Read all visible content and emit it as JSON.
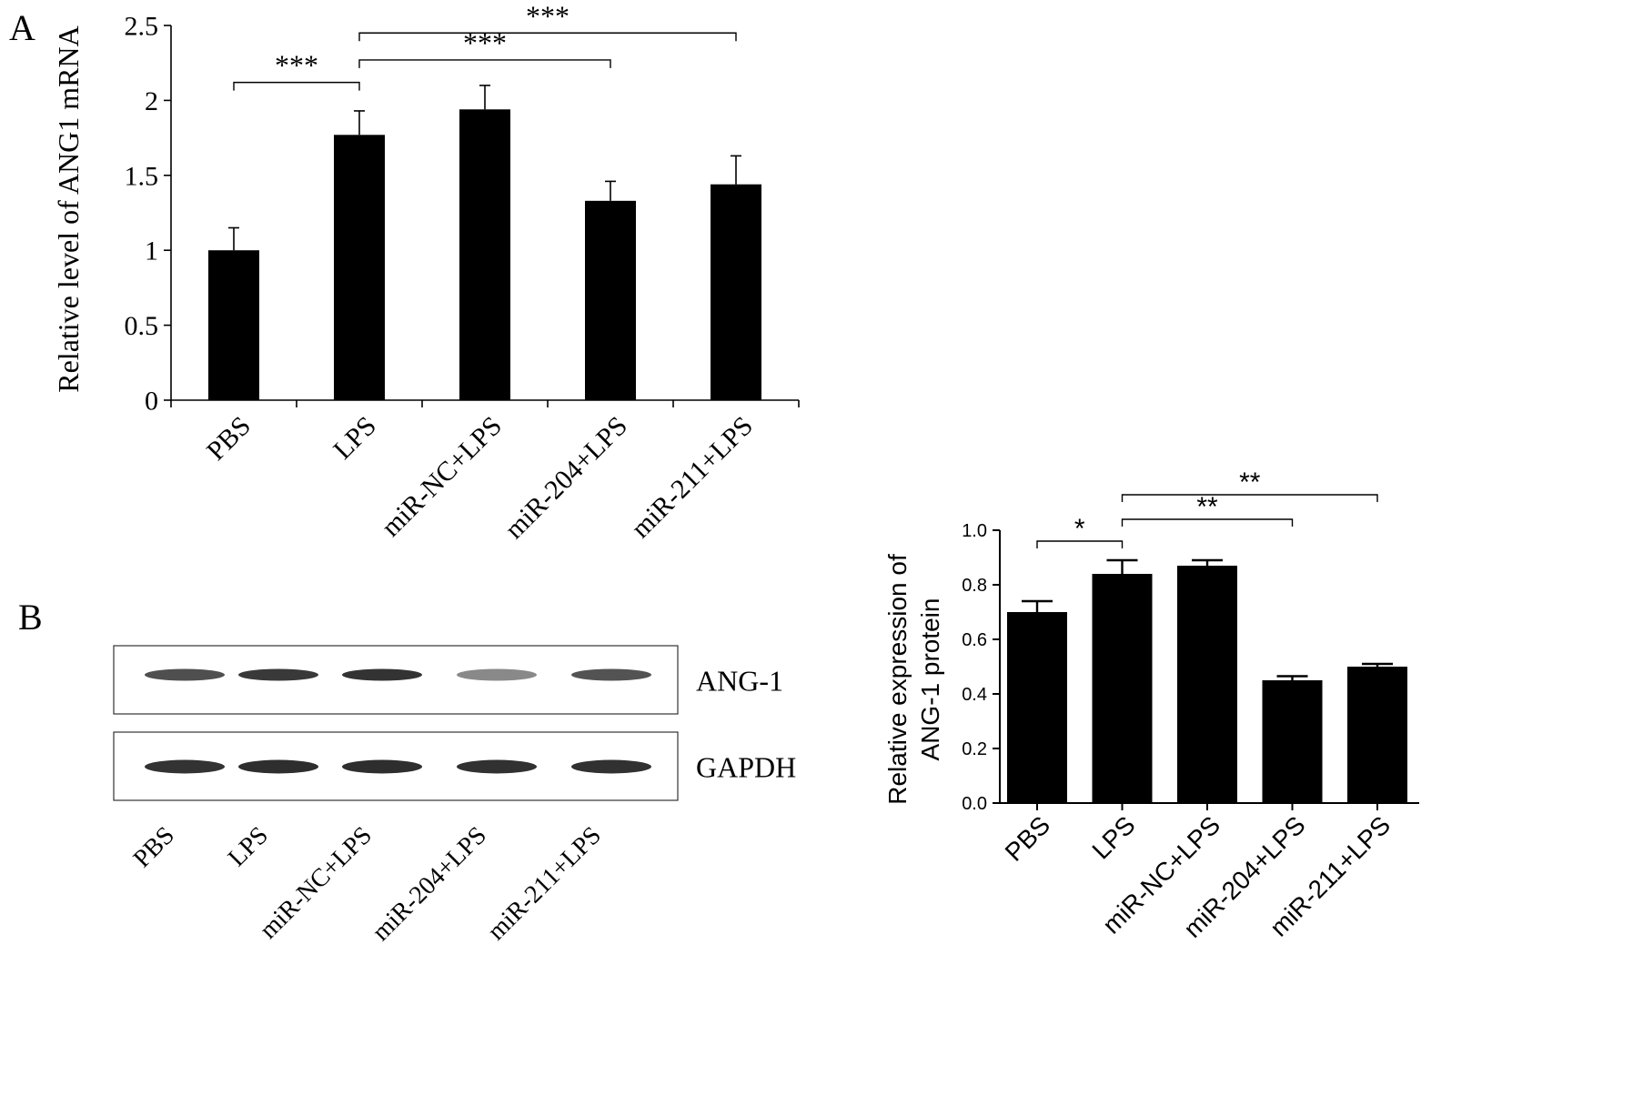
{
  "panel_labels": {
    "a": "A",
    "b": "B"
  },
  "chart_data": [
    {
      "type": "bar",
      "title": "",
      "xlabel": "",
      "ylabel": "Relative level of ANG1 mRNA",
      "ylim": [
        0,
        2.5
      ],
      "yticks": [
        0,
        0.5,
        1,
        1.5,
        2,
        2.5
      ],
      "ytick_labels": [
        "0",
        "0.5",
        "1",
        "1.5",
        "2",
        "2.5"
      ],
      "categories": [
        "PBS",
        "LPS",
        "miR-NC+LPS",
        "miR-204+LPS",
        "miR-211+LPS"
      ],
      "values": [
        1.0,
        1.77,
        1.94,
        1.33,
        1.44
      ],
      "errors": [
        0.15,
        0.16,
        0.16,
        0.13,
        0.19
      ],
      "grid": false,
      "bar_color": "#000000",
      "significance": [
        {
          "from": 0,
          "to": 1,
          "label": "***",
          "level": 2.12
        },
        {
          "from": 1,
          "to": 3,
          "label": "***",
          "level": 2.27
        },
        {
          "from": 1,
          "to": 4,
          "label": "***",
          "level": 2.45
        }
      ]
    },
    {
      "type": "bar",
      "title": "",
      "xlabel": "",
      "ylabel": [
        "Relative expression of",
        "ANG-1 protein"
      ],
      "ylim": [
        0,
        1.0
      ],
      "yticks": [
        0,
        0.2,
        0.4,
        0.6,
        0.8,
        1.0
      ],
      "ytick_labels": [
        "0.0",
        "0.2",
        "0.4",
        "0.6",
        "0.8",
        "1.0"
      ],
      "categories": [
        "PBS",
        "LPS",
        "miR-NC+LPS",
        "miR-204+LPS",
        "miR-211+LPS"
      ],
      "values": [
        0.7,
        0.84,
        0.87,
        0.45,
        0.5
      ],
      "errors": [
        0.04,
        0.05,
        0.02,
        0.015,
        0.01
      ],
      "grid": false,
      "bar_color": "#000000",
      "significance": [
        {
          "from": 0,
          "to": 1,
          "label": "*",
          "level": 0.96
        },
        {
          "from": 1,
          "to": 3,
          "label": "**",
          "level": 1.04
        },
        {
          "from": 1,
          "to": 4,
          "label": "**",
          "level": 1.13
        }
      ]
    }
  ],
  "blot": {
    "lanes": [
      "PBS",
      "LPS",
      "miR-NC+LPS",
      "miR-204+LPS",
      "miR-211+LPS"
    ],
    "rows": [
      {
        "label": "ANG-1",
        "intensity": [
          0.82,
          0.92,
          0.95,
          0.55,
          0.8
        ]
      },
      {
        "label": "GAPDH",
        "intensity": [
          0.95,
          0.97,
          0.97,
          0.96,
          0.96
        ]
      }
    ]
  }
}
